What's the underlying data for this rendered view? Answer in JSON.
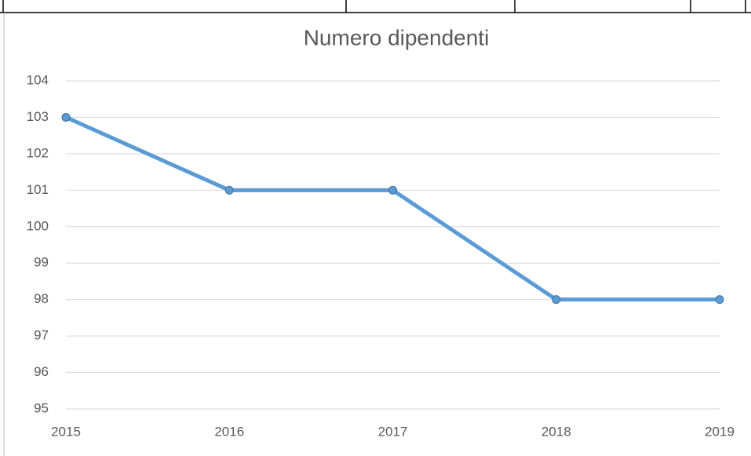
{
  "chart_data": {
    "type": "line",
    "title": "Numero dipendenti",
    "categories": [
      "2015",
      "2016",
      "2017",
      "2018",
      "2019"
    ],
    "series": [
      {
        "name": "Numero dipendenti",
        "color": "#5b9bd5",
        "values": [
          103,
          101,
          101,
          98,
          98
        ]
      }
    ],
    "ylim": [
      95,
      104
    ],
    "yticks": [
      95,
      96,
      97,
      98,
      99,
      100,
      101,
      102,
      103,
      104
    ],
    "grid": true
  }
}
